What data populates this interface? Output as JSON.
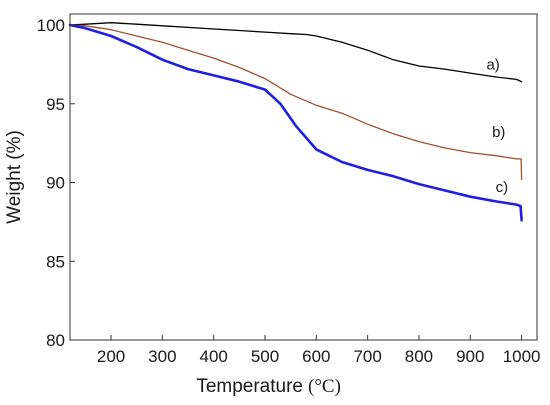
{
  "chart_data": {
    "type": "line",
    "title": "",
    "xlabel": "Temperature",
    "xlabel_unit": "(°C)",
    "ylabel": "Weight (%)",
    "xlim": [
      120,
      1030
    ],
    "ylim": [
      80,
      100.7
    ],
    "xticks": [
      200,
      300,
      400,
      500,
      600,
      700,
      800,
      900,
      1000
    ],
    "yticks": [
      80,
      85,
      90,
      95,
      100
    ],
    "grid": false,
    "series": [
      {
        "name": "a)",
        "color": "#000000",
        "x": [
          120,
          150,
          200,
          250,
          300,
          350,
          400,
          450,
          500,
          550,
          580,
          600,
          650,
          700,
          750,
          800,
          850,
          900,
          950,
          990,
          1000
        ],
        "y": [
          100.0,
          100.05,
          100.15,
          100.05,
          99.95,
          99.85,
          99.75,
          99.65,
          99.55,
          99.45,
          99.4,
          99.3,
          98.9,
          98.4,
          97.8,
          97.4,
          97.2,
          96.95,
          96.7,
          96.55,
          96.4
        ]
      },
      {
        "name": "b)",
        "color": "#a0522d",
        "x": [
          120,
          150,
          200,
          250,
          300,
          350,
          400,
          450,
          500,
          550,
          600,
          650,
          700,
          750,
          800,
          850,
          900,
          950,
          990,
          999,
          1000
        ],
        "y": [
          100.0,
          99.95,
          99.7,
          99.3,
          98.9,
          98.4,
          97.9,
          97.3,
          96.6,
          95.6,
          94.9,
          94.4,
          93.7,
          93.1,
          92.6,
          92.2,
          91.9,
          91.7,
          91.5,
          91.5,
          90.2
        ]
      },
      {
        "name": "c)",
        "color": "#1f1fe0",
        "x": [
          120,
          150,
          200,
          250,
          300,
          350,
          400,
          450,
          500,
          530,
          560,
          600,
          650,
          700,
          750,
          800,
          850,
          900,
          950,
          990,
          998,
          1000
        ],
        "y": [
          100.0,
          99.8,
          99.3,
          98.6,
          97.8,
          97.2,
          96.8,
          96.4,
          95.9,
          95.0,
          93.6,
          92.1,
          91.3,
          90.8,
          90.4,
          89.9,
          89.5,
          89.1,
          88.8,
          88.6,
          88.5,
          87.6
        ]
      }
    ]
  }
}
